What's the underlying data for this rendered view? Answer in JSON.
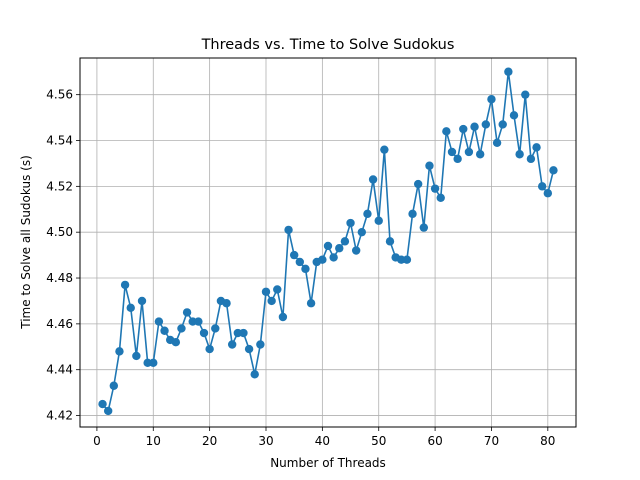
{
  "chart_data": {
    "type": "line",
    "title": "Threads vs. Time to Solve Sudokus",
    "xlabel": "Number of Threads",
    "ylabel": "Time to Solve all Sudokus (s)",
    "xlim": [
      -3,
      85
    ],
    "ylim": [
      4.415,
      4.576
    ],
    "xticks": [
      0,
      10,
      20,
      30,
      40,
      50,
      60,
      70,
      80
    ],
    "yticks": [
      4.42,
      4.44,
      4.46,
      4.48,
      4.5,
      4.52,
      4.54,
      4.56
    ],
    "ytick_labels": [
      "4.42",
      "4.44",
      "4.46",
      "4.48",
      "4.50",
      "4.52",
      "4.54",
      "4.56"
    ],
    "grid": true,
    "marker": "circle",
    "color": "#1f77b4",
    "series": [
      {
        "x": [
          1,
          2,
          3,
          4,
          5,
          6,
          7,
          8,
          9,
          10,
          11,
          12,
          13,
          14,
          15,
          16,
          17,
          18,
          19,
          20,
          21,
          22,
          23,
          24,
          25,
          26,
          27,
          28,
          29,
          30,
          31,
          32,
          33,
          34,
          35,
          36,
          37,
          38,
          39,
          40,
          41,
          42,
          43,
          44,
          45,
          46,
          47,
          48,
          49,
          50,
          51,
          52,
          53,
          54,
          55,
          56,
          57,
          58,
          59,
          60,
          61,
          62,
          63,
          64,
          65,
          66,
          67,
          68,
          69,
          70,
          71,
          72,
          73,
          74,
          75,
          76,
          77,
          78,
          79,
          80,
          81
        ],
        "y": [
          4.425,
          4.422,
          4.433,
          4.448,
          4.477,
          4.467,
          4.446,
          4.47,
          4.443,
          4.443,
          4.461,
          4.457,
          4.453,
          4.452,
          4.458,
          4.465,
          4.461,
          4.461,
          4.456,
          4.449,
          4.458,
          4.47,
          4.469,
          4.451,
          4.456,
          4.456,
          4.449,
          4.438,
          4.451,
          4.474,
          4.47,
          4.475,
          4.463,
          4.501,
          4.49,
          4.487,
          4.484,
          4.469,
          4.487,
          4.488,
          4.494,
          4.489,
          4.493,
          4.496,
          4.504,
          4.492,
          4.5,
          4.508,
          4.523,
          4.505,
          4.536,
          4.496,
          4.489,
          4.488,
          4.488,
          4.508,
          4.521,
          4.502,
          4.529,
          4.519,
          4.515,
          4.544,
          4.535,
          4.532,
          4.545,
          4.535,
          4.546,
          4.534,
          4.547,
          4.558,
          4.539,
          4.547,
          4.57,
          4.551,
          4.534,
          4.56,
          4.532,
          4.537,
          4.52,
          4.517,
          4.527
        ]
      }
    ]
  }
}
